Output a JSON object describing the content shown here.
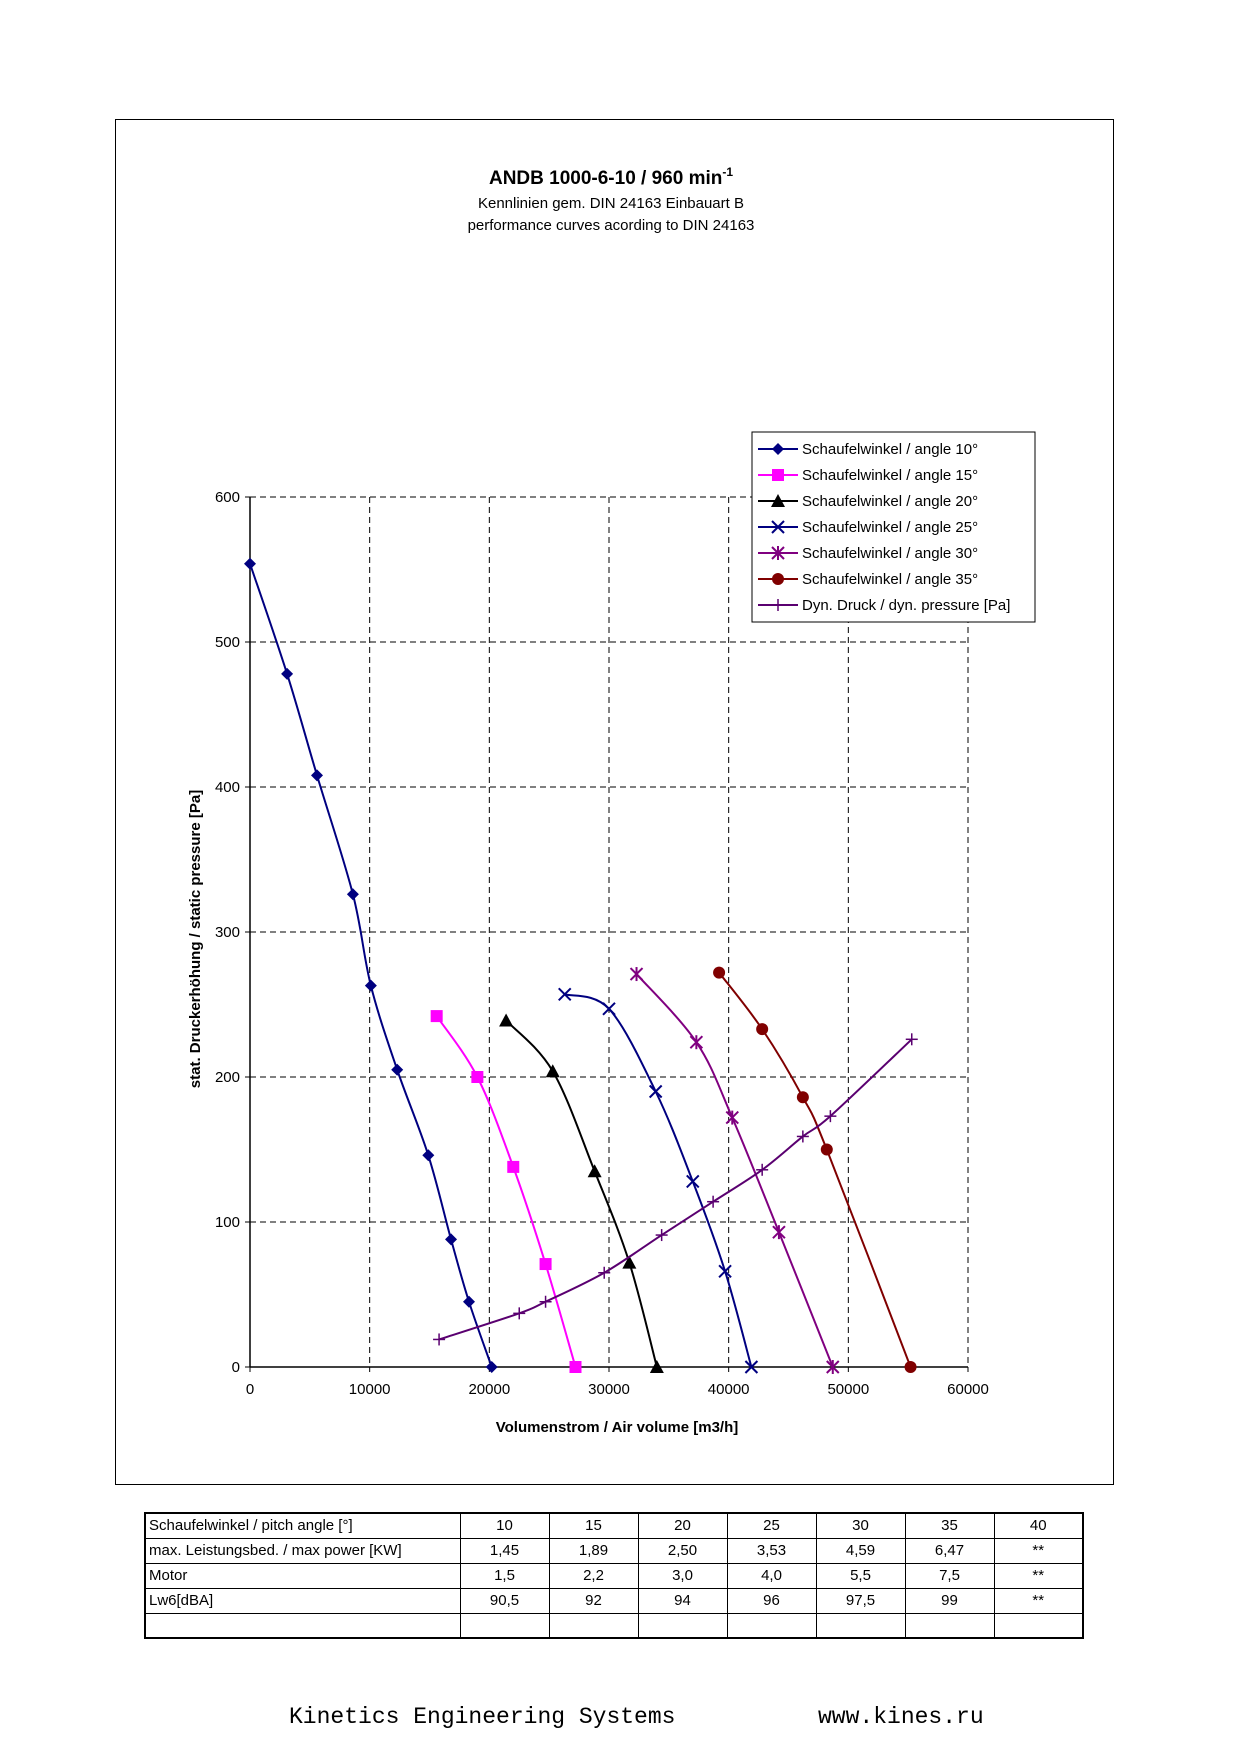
{
  "chart_data": {
    "type": "line",
    "title": "ANDB 1000-6-10 / 960 min",
    "title_superscript": "-1",
    "subtitle_lines": [
      "Kennlinien gem. DIN 24163 Einbauart B",
      "performance curves acording to DIN 24163"
    ],
    "xlabel": "Volumenstrom / Air volume [m3/h]",
    "ylabel": "stat. Druckerhöhung / static pressure [Pa]",
    "xlim": [
      0,
      60000
    ],
    "ylim": [
      0,
      600
    ],
    "x_ticks": [
      0,
      10000,
      20000,
      30000,
      40000,
      50000,
      60000
    ],
    "x_tick_labels": [
      "0",
      "10000",
      "20000",
      "30000",
      "40000",
      "50000",
      "60000"
    ],
    "y_ticks": [
      0,
      100,
      200,
      300,
      400,
      500,
      600
    ],
    "y_tick_labels": [
      "0",
      "100",
      "200",
      "300",
      "400",
      "500",
      "600"
    ],
    "grid": true,
    "legend_position": "top-right",
    "series": [
      {
        "name": "Schaufelwinkel / angle 10°",
        "color": "#000080",
        "marker": "diamond",
        "x": [
          0,
          3100,
          5600,
          8600,
          10100,
          12300,
          14900,
          16800,
          18300,
          20200
        ],
        "y": [
          554,
          478,
          408,
          326,
          263,
          205,
          146,
          88,
          45,
          0
        ]
      },
      {
        "name": "Schaufelwinkel / angle 15°",
        "color": "#ff00ff",
        "marker": "square",
        "x": [
          15600,
          19000,
          22000,
          24700,
          27200
        ],
        "y": [
          242,
          200,
          138,
          71,
          0
        ]
      },
      {
        "name": "Schaufelwinkel / angle 20°",
        "color": "#000000",
        "marker": "triangle",
        "x": [
          21400,
          25300,
          28800,
          31700,
          34000
        ],
        "y": [
          239,
          204,
          135,
          72,
          0
        ]
      },
      {
        "name": "Schaufelwinkel / angle 25°",
        "color": "#000080",
        "marker": "x",
        "x": [
          26300,
          30000,
          33900,
          37000,
          39700,
          41900
        ],
        "y": [
          257,
          247,
          190,
          128,
          66,
          0
        ]
      },
      {
        "name": "Schaufelwinkel / angle 30°",
        "color": "#800080",
        "marker": "star",
        "x": [
          32300,
          37300,
          40300,
          44200,
          48700
        ],
        "y": [
          271,
          224,
          172,
          93,
          0
        ]
      },
      {
        "name": "Schaufelwinkel / angle 35°",
        "color": "#800000",
        "marker": "circle",
        "x": [
          39200,
          42800,
          46200,
          48200,
          55200
        ],
        "y": [
          272,
          233,
          186,
          150,
          0
        ]
      },
      {
        "name": "Dyn. Druck / dyn. pressure [Pa]",
        "color": "#5a0070",
        "marker": "plus",
        "x": [
          15800,
          22500,
          24700,
          29600,
          34400,
          38700,
          42800,
          46200,
          48500,
          55300
        ],
        "y": [
          19,
          37,
          45,
          65,
          91,
          114,
          136,
          159,
          173,
          226
        ]
      }
    ]
  },
  "table": {
    "rows": [
      [
        "Schaufelwinkel / pitch angle [°]",
        "10",
        "15",
        "20",
        "25",
        "30",
        "35",
        "40"
      ],
      [
        "max. Leistungsbed. / max power [KW]",
        "1,45",
        "1,89",
        "2,50",
        "3,53",
        "4,59",
        "6,47",
        "**"
      ],
      [
        "Motor",
        "1,5",
        "2,2",
        "3,0",
        "4,0",
        "5,5",
        "7,5",
        "**"
      ],
      [
        "Lw6[dBA]",
        "90,5",
        "92",
        "94",
        "96",
        "97,5",
        "99",
        "**"
      ],
      [
        "",
        "",
        "",
        "",
        "",
        "",
        "",
        ""
      ]
    ]
  },
  "footer": {
    "company": "Kinetics Engineering Systems",
    "url": "www.kines.ru"
  }
}
